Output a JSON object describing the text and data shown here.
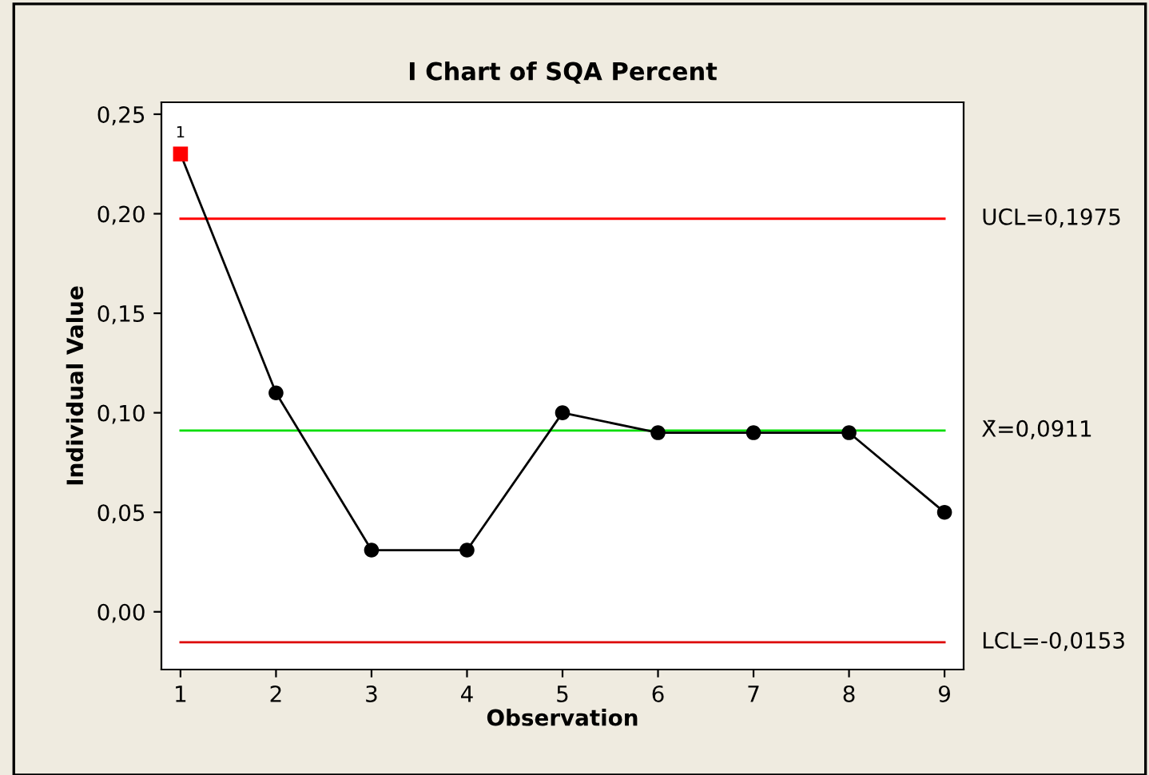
{
  "chart_data": {
    "type": "line",
    "title": "I Chart of SQA Percent",
    "xlabel": "Observation",
    "ylabel": "Individual Value",
    "x": [
      1,
      2,
      3,
      4,
      5,
      6,
      7,
      8,
      9
    ],
    "series": [
      {
        "color": "#000000",
        "marker": "none",
        "values": [
          0.23,
          0.11,
          0.031,
          0.031,
          0.1,
          0.09,
          0.09,
          0.09,
          0.05
        ]
      },
      {
        "type": "scatter",
        "color": "#000000",
        "marker": "circle",
        "values": [
          null,
          0.11,
          0.031,
          0.031,
          0.1,
          0.09,
          0.09,
          0.09,
          0.05
        ]
      },
      {
        "type": "scatter",
        "color": "#ff0000",
        "marker": "square",
        "values": [
          0.23,
          null,
          null,
          null,
          null,
          null,
          null,
          null,
          null
        ]
      }
    ],
    "xlim": [
      0.8,
      9.2
    ],
    "xticks": [
      1,
      2,
      3,
      4,
      5,
      6,
      7,
      8,
      9
    ],
    "ylim": [
      -0.029,
      0.256
    ],
    "yticks": [
      {
        "value": 0.0,
        "label": "0,00"
      },
      {
        "value": 0.05,
        "label": "0,05"
      },
      {
        "value": 0.1,
        "label": "0,10"
      },
      {
        "value": 0.15,
        "label": "0,15"
      },
      {
        "value": 0.2,
        "label": "0,20"
      },
      {
        "value": 0.25,
        "label": "0,25"
      }
    ],
    "ref_lines": [
      {
        "axis": "y",
        "value": 0.1975,
        "label": "UCL=0,1975",
        "color": "#ff0000"
      },
      {
        "axis": "y",
        "value": 0.0911,
        "label": "X̄=0,0911",
        "color": "#00dd00"
      },
      {
        "axis": "y",
        "value": -0.0153,
        "label": "LCL=-0,0153",
        "color": "#dd0000"
      }
    ],
    "annotations": [
      {
        "text": "1",
        "x": 1,
        "y": 0.23
      }
    ],
    "grid": false,
    "legend": false,
    "line_style": "solid"
  }
}
